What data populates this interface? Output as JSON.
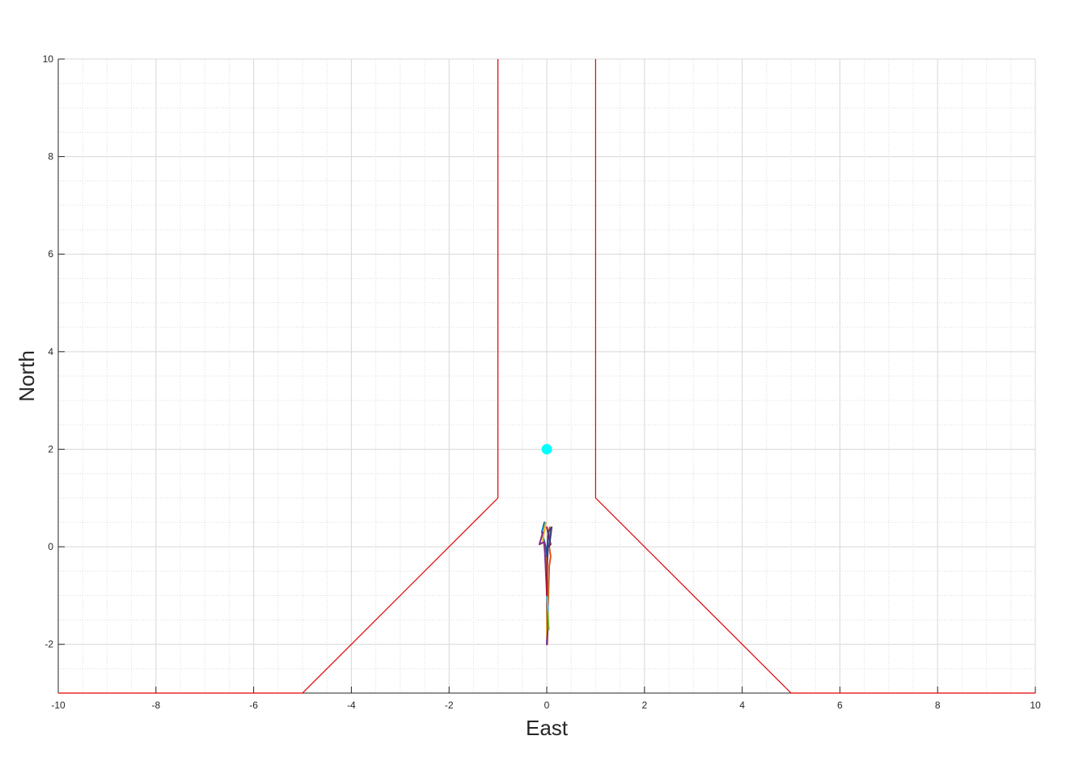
{
  "chart_data": {
    "type": "line",
    "title": "",
    "xlabel": "East",
    "ylabel": "North",
    "xlim": [
      -10,
      10
    ],
    "ylim": [
      -3,
      10
    ],
    "xticks": [
      -10,
      -8,
      -6,
      -4,
      -2,
      0,
      2,
      4,
      6,
      8,
      10
    ],
    "yticks": [
      -2,
      0,
      2,
      4,
      6,
      8,
      10
    ],
    "xtick_labels": [
      "-10",
      "-8",
      "-6",
      "-4",
      "-2",
      "0",
      "2",
      "4",
      "6",
      "8",
      "10"
    ],
    "ytick_labels": [
      "-2",
      "0",
      "2",
      "4",
      "6",
      "8",
      "10"
    ],
    "grid": true,
    "minor_grid": true,
    "legend": "none",
    "boundary": {
      "color": "#e00000",
      "left": [
        [
          -10,
          -3
        ],
        [
          -5,
          -3
        ],
        [
          -1,
          1
        ],
        [
          -1,
          10
        ]
      ],
      "right": [
        [
          1,
          10
        ],
        [
          1,
          1
        ],
        [
          5,
          -3
        ],
        [
          10,
          -3
        ]
      ]
    },
    "goal": {
      "x": 0,
      "y": 2,
      "color": "#00ffff"
    },
    "series": [
      {
        "color": "#0072bd",
        "points": [
          [
            0,
            -2.0
          ],
          [
            0.02,
            -1.3
          ],
          [
            0.0,
            -0.6
          ],
          [
            -0.02,
            0.0
          ],
          [
            -0.1,
            0.3
          ],
          [
            -0.05,
            0.5
          ]
        ]
      },
      {
        "color": "#d95319",
        "points": [
          [
            0.01,
            -2.0
          ],
          [
            0.03,
            -1.1
          ],
          [
            0.05,
            -0.4
          ],
          [
            0.08,
            -0.2
          ],
          [
            0.02,
            0.2
          ],
          [
            0.06,
            0.4
          ]
        ]
      },
      {
        "color": "#edb120",
        "points": [
          [
            0,
            -1.9
          ],
          [
            0.0,
            -1.0
          ],
          [
            -0.02,
            -0.2
          ],
          [
            -0.08,
            0.15
          ],
          [
            -0.02,
            0.5
          ]
        ]
      },
      {
        "color": "#7e2f8e",
        "points": [
          [
            0,
            -2.0
          ],
          [
            0.02,
            -1.7
          ],
          [
            0.0,
            -0.9
          ],
          [
            -0.05,
            0.1
          ],
          [
            -0.15,
            0.05
          ],
          [
            -0.08,
            0.3
          ]
        ]
      },
      {
        "color": "#77ac30",
        "points": [
          [
            0.04,
            -1.7
          ],
          [
            0.02,
            -1.3
          ],
          [
            0.0,
            -0.5
          ],
          [
            0.02,
            0.1
          ],
          [
            0.08,
            0.35
          ]
        ]
      },
      {
        "color": "#4dbeee",
        "points": [
          [
            0.03,
            -1.3
          ],
          [
            0.0,
            -1.0
          ],
          [
            0.01,
            -0.3
          ],
          [
            0.05,
            0.2
          ]
        ]
      },
      {
        "color": "#a2142f",
        "points": [
          [
            0,
            -1.0
          ],
          [
            0.0,
            -0.6
          ],
          [
            0.02,
            0.0
          ],
          [
            0.08,
            0.05
          ],
          [
            0.0,
            0.4
          ]
        ]
      },
      {
        "color": "#3f3f80",
        "points": [
          [
            0.0,
            -0.2
          ],
          [
            0.03,
            0.3
          ],
          [
            0.1,
            0.4
          ],
          [
            0.05,
            0.0
          ]
        ]
      }
    ]
  }
}
